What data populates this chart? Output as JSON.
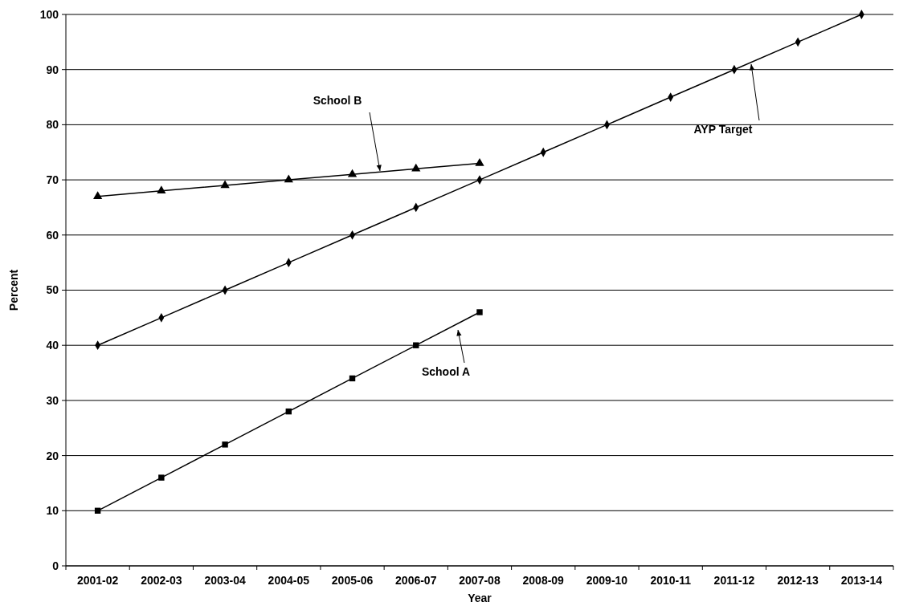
{
  "chart_data": {
    "type": "line",
    "xlabel": "Year",
    "ylabel": "Percent",
    "categories": [
      "2001-02",
      "2002-03",
      "2003-04",
      "2004-05",
      "2005-06",
      "2006-07",
      "2007-08",
      "2008-09",
      "2009-10",
      "2010-11",
      "2011-12",
      "2012-13",
      "2013-14"
    ],
    "series": [
      {
        "name": "School B",
        "color": "#000000",
        "marker": "triangle",
        "values": [
          67,
          68,
          69,
          70,
          71,
          72,
          73,
          null,
          null,
          null,
          null,
          null,
          null
        ]
      },
      {
        "name": "AYP Target",
        "color": "#000000",
        "marker": "diamond",
        "values": [
          40,
          45,
          50,
          55,
          60,
          65,
          70,
          75,
          80,
          85,
          90,
          95,
          100
        ]
      },
      {
        "name": "School A",
        "color": "#000000",
        "marker": "square",
        "values": [
          10,
          16,
          22,
          28,
          34,
          40,
          46,
          null,
          null,
          null,
          null,
          null,
          null
        ]
      }
    ],
    "ylim": [
      0,
      100
    ],
    "yticks": [
      0,
      10,
      20,
      30,
      40,
      50,
      60,
      70,
      80,
      90,
      100
    ],
    "grid": "y",
    "line_style": "solid"
  }
}
